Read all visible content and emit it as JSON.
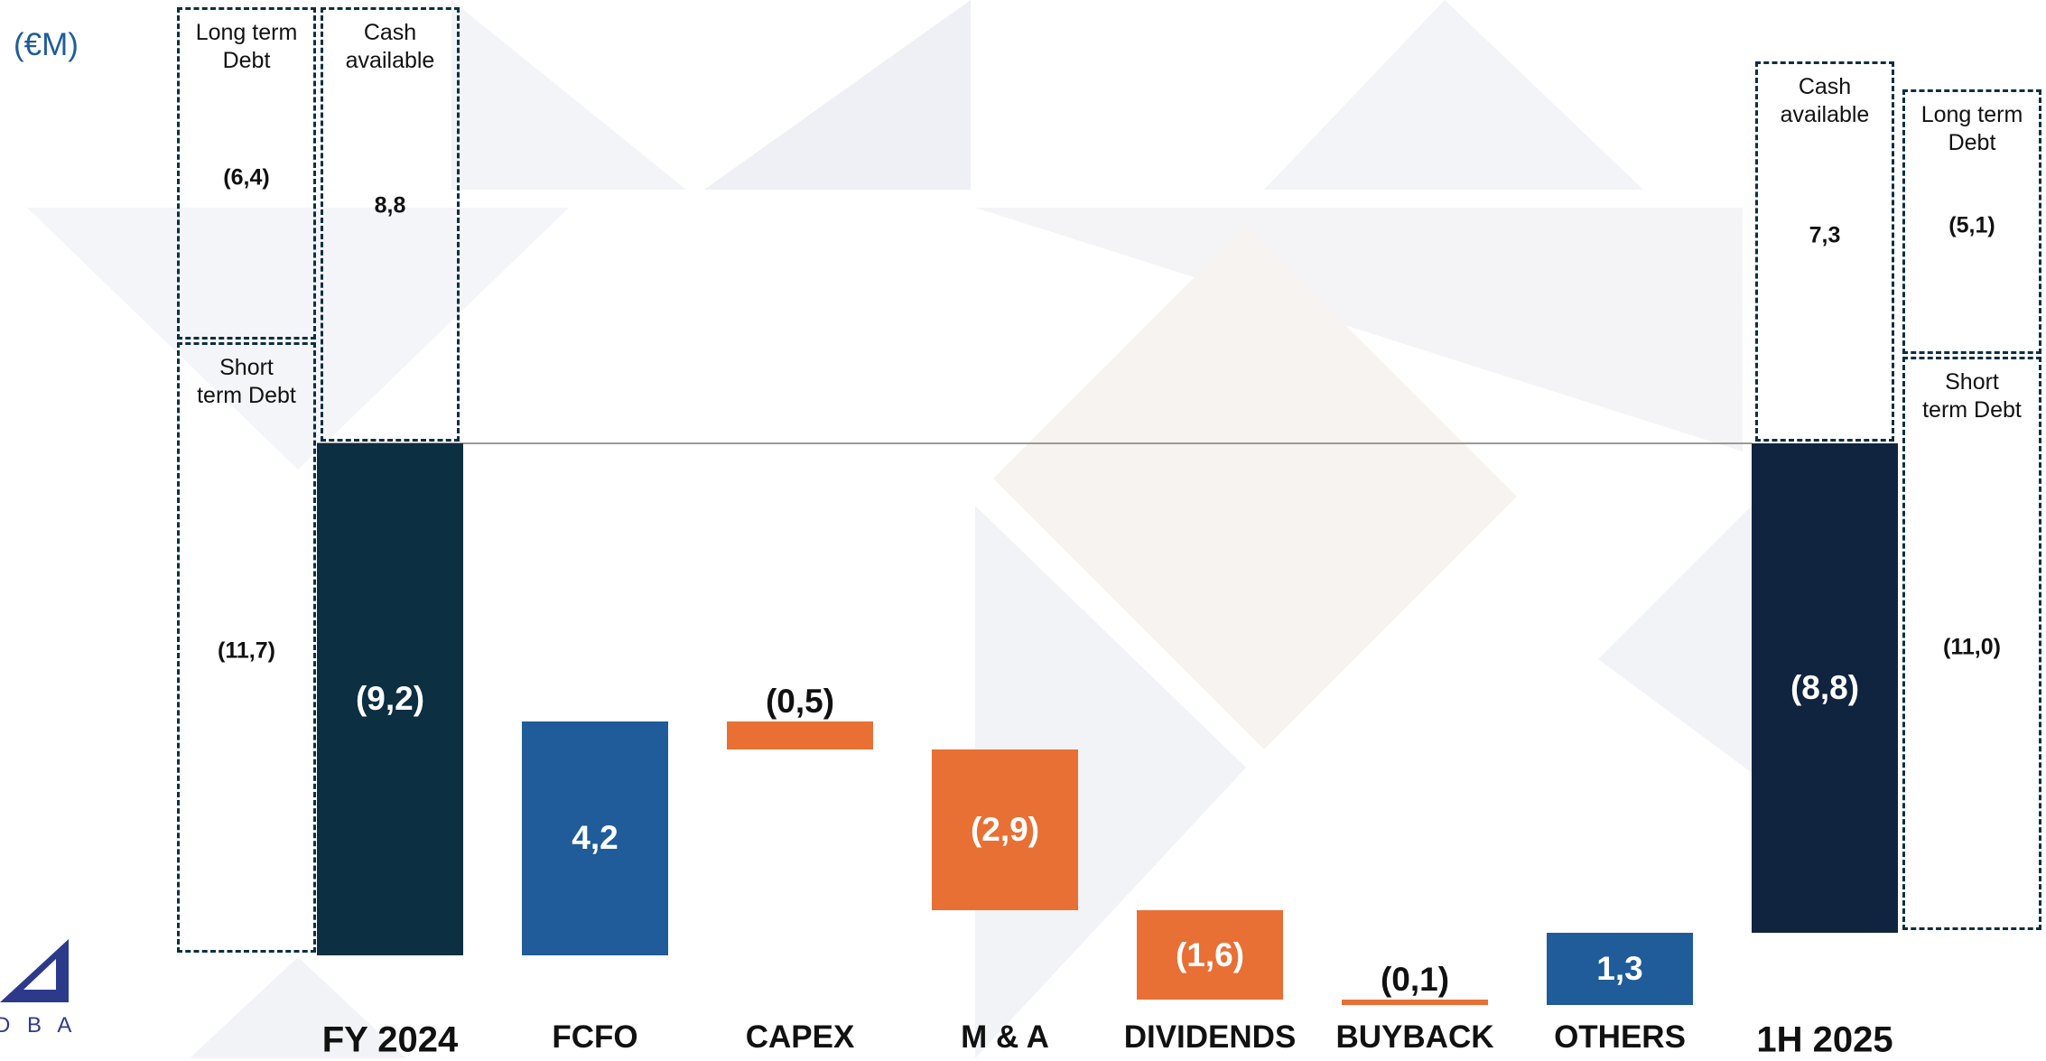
{
  "chart_data": {
    "type": "waterfall",
    "unit_label": "(€M)",
    "categories": [
      "FY 2024",
      "FCFO",
      "CAPEX",
      "M & A",
      "DIVIDENDS",
      "BUYBACK",
      "OTHERS",
      "1H 2025"
    ],
    "measure": [
      "total",
      "relative",
      "relative",
      "relative",
      "relative",
      "relative",
      "relative",
      "total"
    ],
    "values": [
      -9.2,
      4.2,
      -0.5,
      -2.9,
      -1.6,
      -0.1,
      1.3,
      -8.8
    ],
    "value_labels": [
      "(9,2)",
      "4,2",
      "(0,5)",
      "(2,9)",
      "(1,6)",
      "(0,1)",
      "1,3",
      "(8,8)"
    ],
    "colors": [
      "#0c2f42",
      "#1f5c99",
      "#e87035",
      "#e87035",
      "#e87035",
      "#e87035",
      "#1f5c99",
      "#10243f"
    ],
    "breakdowns": [
      {
        "debt_side": "left",
        "cash": {
          "label": "Cash available",
          "value": 8.8,
          "value_label": "8,8"
        },
        "debt": [
          {
            "label": "Long term Debt",
            "value": -6.4,
            "value_label": "(6,4)"
          },
          {
            "label": "Short term Debt",
            "value": -11.7,
            "value_label": "(11,7)"
          }
        ]
      },
      {
        "debt_side": "right",
        "cash": {
          "label": "Cash available",
          "value": 7.3,
          "value_label": "7,3"
        },
        "debt": [
          {
            "label": "Long term Debt",
            "value": -5.1,
            "value_label": "(5,1)"
          },
          {
            "label": "Short term Debt",
            "value": -11.0,
            "value_label": "(11,0)"
          }
        ]
      }
    ],
    "logo": "D B A"
  }
}
